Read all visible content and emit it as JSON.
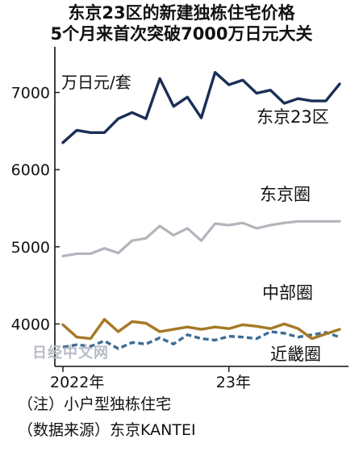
{
  "chart_data": {
    "type": "line",
    "title": "东京23区的新建独栋住宅价格",
    "subtitle": "5个月来首次突破7000万日元大关",
    "unit_label": "万日元/套",
    "ylim": [
      3450,
      7550
    ],
    "yticks": [
      4000,
      5000,
      6000,
      7000
    ],
    "ytick_labels": [
      "4000",
      "5000",
      "6000",
      "7000"
    ],
    "xtick_labels": [
      {
        "index": 0,
        "label": "2022年"
      },
      {
        "index": 12,
        "label": "23年"
      }
    ],
    "n_points": 21,
    "grid": false,
    "series": [
      {
        "name": "东京23区",
        "color": "#1a2f57",
        "style": "solid",
        "values": [
          6350,
          6510,
          6480,
          6480,
          6660,
          6740,
          6660,
          7180,
          6820,
          6940,
          6670,
          7260,
          7100,
          7160,
          6990,
          7030,
          6860,
          6920,
          6890,
          6890,
          7110
        ]
      },
      {
        "name": "东京圈",
        "color": "#b4b4bc",
        "style": "solid",
        "values": [
          4880,
          4910,
          4910,
          4980,
          4920,
          5080,
          5110,
          5270,
          5150,
          5240,
          5080,
          5300,
          5280,
          5310,
          5240,
          5280,
          5310,
          5330,
          5330,
          5330,
          5330
        ]
      },
      {
        "name": "中部圈",
        "color": "#a57925",
        "style": "solid",
        "values": [
          3990,
          3830,
          3810,
          4060,
          3900,
          4030,
          4010,
          3900,
          3930,
          3960,
          3930,
          3960,
          3940,
          3990,
          3970,
          3940,
          4000,
          3940,
          3810,
          3870,
          3930
        ]
      },
      {
        "name": "近畿圈",
        "color": "#3f6d94",
        "style": "dashed",
        "values": [
          3700,
          3730,
          3710,
          3780,
          3680,
          3760,
          3740,
          3820,
          3740,
          3860,
          3810,
          3790,
          3840,
          3830,
          3810,
          3900,
          3880,
          3830,
          3860,
          3890,
          3830
        ]
      }
    ]
  },
  "notes": {
    "note1": "（注）小户型独栋住宅",
    "note2": "（数据来源）东京KANTEI"
  },
  "watermark": "日经中文网"
}
